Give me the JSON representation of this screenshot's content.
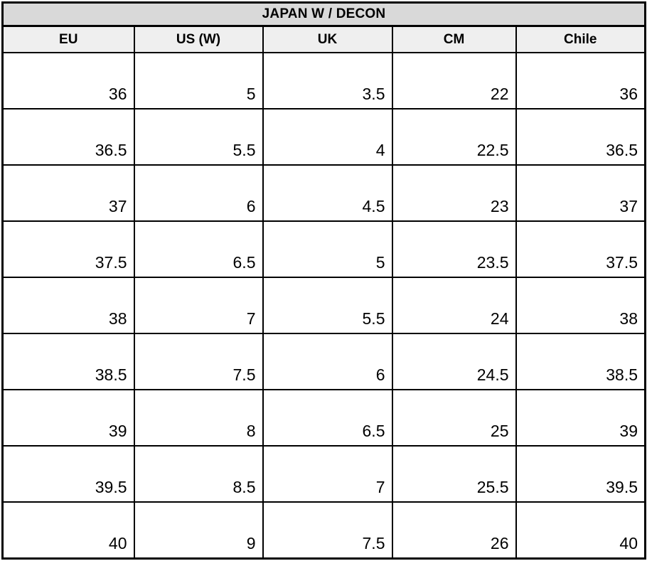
{
  "table": {
    "title": "JAPAN W / DECON",
    "columns": [
      "EU",
      "US (W)",
      "UK",
      "CM",
      "Chile"
    ],
    "rows": [
      [
        "36",
        "5",
        "3.5",
        "22",
        "36"
      ],
      [
        "36.5",
        "5.5",
        "4",
        "22.5",
        "36.5"
      ],
      [
        "37",
        "6",
        "4.5",
        "23",
        "37"
      ],
      [
        "37.5",
        "6.5",
        "5",
        "23.5",
        "37.5"
      ],
      [
        "38",
        "7",
        "5.5",
        "24",
        "38"
      ],
      [
        "38.5",
        "7.5",
        "6",
        "24.5",
        "38.5"
      ],
      [
        "39",
        "8",
        "6.5",
        "25",
        "39"
      ],
      [
        "39.5",
        "8.5",
        "7",
        "25.5",
        "39.5"
      ],
      [
        "40",
        "9",
        "7.5",
        "26",
        "40"
      ]
    ],
    "colors": {
      "title_bg": "#d9d9d9",
      "header_bg": "#efefef",
      "border": "#000000",
      "cell_bg": "#ffffff",
      "text": "#000000"
    }
  }
}
